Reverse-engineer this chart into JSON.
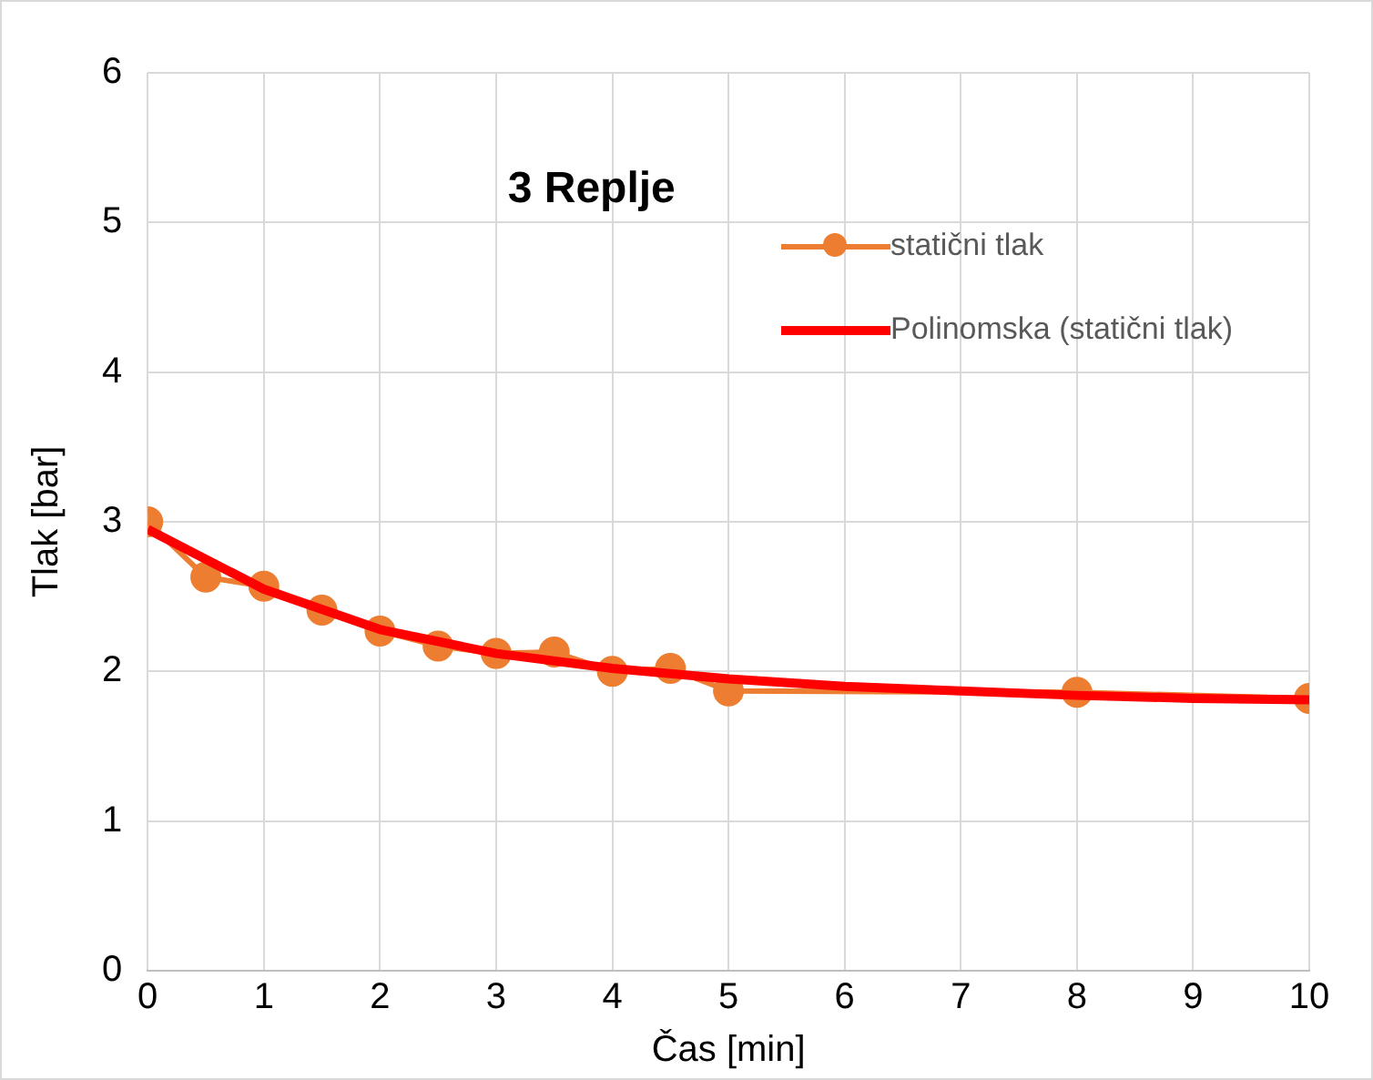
{
  "chart_data": {
    "type": "line",
    "title": "3 Replje",
    "xlabel": "Čas [min]",
    "ylabel": "Tlak [bar]",
    "x": [
      0,
      0.5,
      1,
      1.5,
      2,
      2.5,
      3,
      3.5,
      4,
      4.5,
      5,
      8,
      10
    ],
    "series": [
      {
        "name": "statični tlak",
        "color": "#ed7d31",
        "marker": "circle",
        "values": [
          3.0,
          2.63,
          2.57,
          2.41,
          2.27,
          2.17,
          2.12,
          2.13,
          2.0,
          2.02,
          1.87,
          1.86,
          1.82
        ]
      },
      {
        "name": "Polinomska (statični tlak)",
        "color": "#ff0000",
        "marker": "none",
        "x": [
          0,
          1,
          2,
          3,
          4,
          5,
          6,
          7,
          8,
          9,
          10
        ],
        "values": [
          2.95,
          2.55,
          2.28,
          2.12,
          2.02,
          1.95,
          1.9,
          1.87,
          1.84,
          1.82,
          1.81
        ]
      }
    ],
    "xlim": [
      0,
      10
    ],
    "xticks": [
      0,
      1,
      2,
      3,
      4,
      5,
      6,
      7,
      8,
      9,
      10
    ],
    "ylim": [
      0,
      6
    ],
    "yticks": [
      0,
      1,
      2,
      3,
      4,
      5,
      6
    ],
    "grid": true,
    "legend": "top right"
  }
}
